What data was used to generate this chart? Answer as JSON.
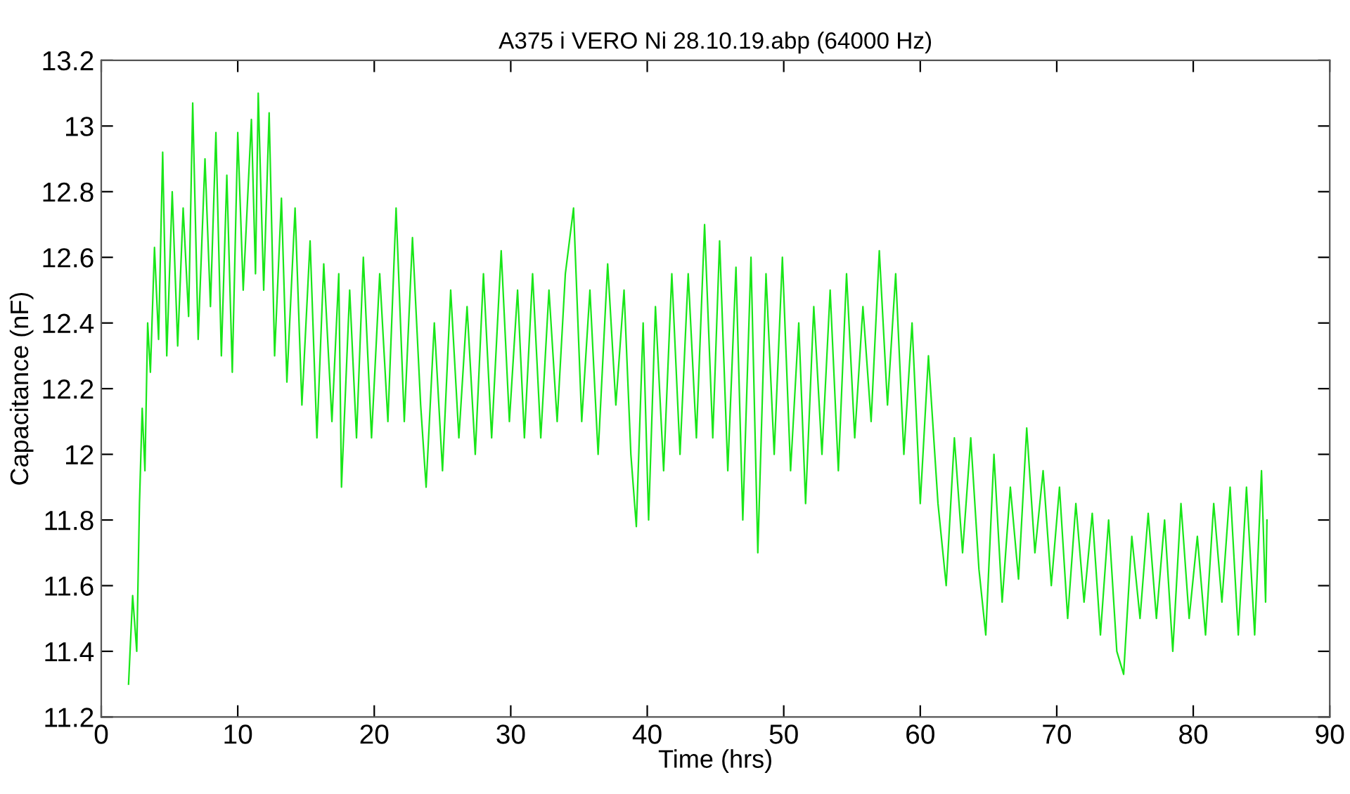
{
  "chart_data": {
    "type": "line",
    "title": "A375 i VERO Ni 28.10.19.abp (64000 Hz)",
    "xlabel": "Time (hrs)",
    "ylabel": "Capacitance (nF)",
    "xlim": [
      0,
      90
    ],
    "xticks": [
      0,
      10,
      20,
      30,
      40,
      50,
      60,
      70,
      80,
      90
    ],
    "ylim": [
      11.2,
      13.2
    ],
    "yticks": [
      11.2,
      11.4,
      11.6,
      11.8,
      12,
      12.2,
      12.4,
      12.6,
      12.8,
      13,
      13.2
    ],
    "grid": false,
    "legend": false,
    "marker": "none",
    "line_style": "solid",
    "series": [
      {
        "color": "#19e619",
        "x": [
          2,
          2.3,
          2.6,
          2.8,
          3.0,
          3.2,
          3.4,
          3.6,
          3.9,
          4.2,
          4.5,
          4.8,
          5.2,
          5.6,
          6,
          6.4,
          6.7,
          7.1,
          7.6,
          8,
          8.4,
          8.8,
          9.2,
          9.6,
          10.0,
          10.4,
          11,
          11.3,
          11.5,
          11.9,
          12.3,
          12.7,
          13.2,
          13.6,
          14.2,
          14.7,
          15.3,
          15.8,
          16.3,
          16.9,
          17.4,
          17.6,
          18.2,
          18.7,
          19.2,
          19.8,
          20.4,
          21,
          21.6,
          22.2,
          22.8,
          23.4,
          23.8,
          24.4,
          25,
          25.6,
          26.2,
          26.8,
          27.4,
          28,
          28.6,
          29.3,
          29.9,
          30.5,
          31,
          31.6,
          32.2,
          32.8,
          33.4,
          34,
          34.6,
          35.2,
          35.8,
          36.4,
          37.1,
          37.7,
          38.3,
          38.8,
          39.2,
          39.7,
          40.1,
          40.6,
          41.2,
          41.8,
          42.4,
          43,
          43.6,
          44.2,
          44.8,
          45.3,
          45.9,
          46.5,
          47,
          47.6,
          48.1,
          48.7,
          49.3,
          49.9,
          50.5,
          51.1,
          51.6,
          52.2,
          52.8,
          53.4,
          54,
          54.6,
          55.2,
          55.8,
          56.4,
          57.0,
          57.6,
          58.2,
          58.8,
          59.4,
          60,
          60.6,
          61.3,
          61.9,
          62.5,
          63.1,
          63.7,
          64.3,
          64.8,
          65.4,
          66,
          66.6,
          67.2,
          67.8,
          68.4,
          69,
          69.6,
          70.2,
          70.8,
          71.4,
          72,
          72.6,
          73.2,
          73.8,
          74.4,
          74.9,
          75.5,
          76.1,
          76.7,
          77.3,
          77.9,
          78.5,
          79.1,
          79.7,
          80.3,
          80.9,
          81.5,
          82.1,
          82.7,
          83.3,
          83.9,
          84.5,
          85,
          85.3,
          85.4
        ],
        "values": [
          11.3,
          11.57,
          11.4,
          11.85,
          12.14,
          11.95,
          12.4,
          12.25,
          12.63,
          12.35,
          12.92,
          12.3,
          12.8,
          12.33,
          12.75,
          12.42,
          13.07,
          12.35,
          12.9,
          12.45,
          12.98,
          12.3,
          12.85,
          12.25,
          12.98,
          12.5,
          13.02,
          12.55,
          13.1,
          12.5,
          13.04,
          12.3,
          12.78,
          12.22,
          12.75,
          12.15,
          12.65,
          12.05,
          12.58,
          12.1,
          12.55,
          11.9,
          12.5,
          12.05,
          12.6,
          12.05,
          12.55,
          12.1,
          12.75,
          12.1,
          12.66,
          12.15,
          11.9,
          12.4,
          11.95,
          12.5,
          12.05,
          12.45,
          12.0,
          12.55,
          12.05,
          12.62,
          12.1,
          12.5,
          12.05,
          12.55,
          12.05,
          12.5,
          12.1,
          12.55,
          12.75,
          12.1,
          12.5,
          12.0,
          12.58,
          12.15,
          12.5,
          12.0,
          11.78,
          12.4,
          11.8,
          12.45,
          11.95,
          12.55,
          12.0,
          12.55,
          12.05,
          12.7,
          12.05,
          12.65,
          11.95,
          12.57,
          11.8,
          12.6,
          11.7,
          12.55,
          12.0,
          12.6,
          11.95,
          12.4,
          11.85,
          12.45,
          12.0,
          12.5,
          11.95,
          12.55,
          12.05,
          12.45,
          12.1,
          12.62,
          12.15,
          12.55,
          12.0,
          12.4,
          11.85,
          12.3,
          11.85,
          11.6,
          12.05,
          11.7,
          12.05,
          11.65,
          11.45,
          12.0,
          11.55,
          11.9,
          11.62,
          12.08,
          11.7,
          11.95,
          11.6,
          11.9,
          11.5,
          11.85,
          11.55,
          11.82,
          11.45,
          11.8,
          11.4,
          11.33,
          11.75,
          11.5,
          11.82,
          11.5,
          11.8,
          11.4,
          11.85,
          11.5,
          11.75,
          11.45,
          11.85,
          11.55,
          11.9,
          11.45,
          11.9,
          11.45,
          11.95,
          11.55,
          11.8
        ]
      }
    ]
  }
}
